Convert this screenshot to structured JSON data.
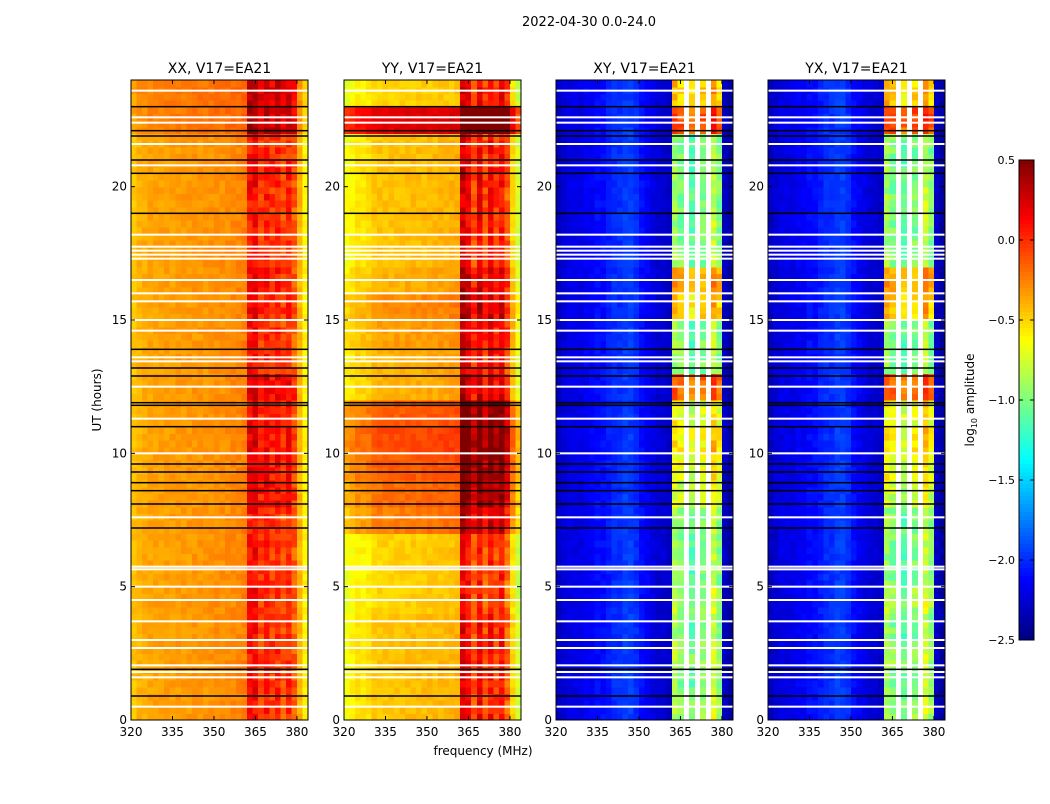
{
  "chart_data": {
    "type": "heatmap",
    "title": "2022-04-30 0.0-24.0",
    "xlabel": "frequency (MHz)",
    "ylabel": "UT (hours)",
    "xlim": [
      320,
      384
    ],
    "ylim": [
      0,
      24
    ],
    "xticks": [
      320,
      335,
      350,
      365,
      380
    ],
    "yticks": [
      0,
      5,
      10,
      15,
      20
    ],
    "channel_width_mhz": 2,
    "time_bin_hours": 0.25,
    "band_mhz": [
      362,
      380
    ],
    "colorbar": {
      "label": "log10 amplitude",
      "label_main": "log",
      "label_sub": "10",
      "label_rest": " amplitude",
      "colormap": "jet",
      "vmin": -2.5,
      "vmax": 0.5,
      "ticks": [
        0.5,
        0.0,
        -0.5,
        -1.0,
        -1.5,
        -2.0,
        -2.5
      ],
      "tick_labels": [
        "0.5",
        "0.0",
        "−0.5",
        "−1.0",
        "−1.5",
        "−2.0",
        "−2.5"
      ]
    },
    "flagged_rows_white_hours": [
      0.5,
      1.6,
      1.8,
      2.05,
      2.7,
      3.0,
      3.7,
      4.5,
      5.0,
      5.65,
      5.75,
      7.6,
      10.0,
      11.3,
      12.5,
      13.45,
      13.6,
      14.6,
      15.0,
      15.7,
      16.0,
      16.5,
      17.3,
      17.45,
      17.6,
      17.75,
      18.2,
      20.8,
      21.6,
      22.4,
      22.6,
      23.6
    ],
    "flagged_rows_black_hours": [
      0.9,
      1.9,
      7.2,
      8.1,
      8.6,
      8.9,
      9.3,
      9.6,
      11.0,
      11.8,
      11.9,
      12.9,
      13.2,
      13.9,
      19.0,
      20.5,
      21.0,
      21.9,
      22.1,
      23.0
    ],
    "panels": [
      {
        "title": "XX, V17=EA21",
        "spectrum": [
          -0.45,
          -0.4,
          -0.38,
          -0.36,
          -0.35,
          -0.35,
          -0.34,
          -0.34,
          -0.33,
          -0.33,
          -0.33,
          -0.32,
          -0.32,
          -0.32,
          -0.31,
          -0.3,
          -0.3,
          -0.29,
          -0.28,
          -0.27,
          -0.25,
          0.08,
          0.12,
          -0.05,
          0.05,
          -0.05,
          0.0,
          -0.1,
          0.0,
          -0.15,
          -0.4,
          -0.6
        ],
        "time_offset": [
          0,
          0,
          0,
          0,
          0,
          0,
          0,
          0,
          0,
          0,
          0,
          0,
          0,
          0,
          0,
          0,
          0,
          0,
          0,
          0,
          0,
          0,
          0.1,
          0.1
        ],
        "band_boost": [
          0,
          0,
          0,
          0,
          0,
          0,
          0,
          0,
          0.1,
          0.1,
          0.1,
          0.05,
          0.15,
          0,
          0,
          0.05,
          0.05,
          0,
          0,
          0,
          0.05,
          0,
          0.2,
          0.15
        ]
      },
      {
        "title": "YY, V17=EA21",
        "spectrum": [
          -0.6,
          -0.55,
          -0.5,
          -0.5,
          -0.48,
          -0.42,
          -0.4,
          -0.4,
          -0.4,
          -0.39,
          -0.39,
          -0.38,
          -0.38,
          -0.38,
          -0.38,
          -0.37,
          -0.37,
          -0.36,
          -0.36,
          -0.35,
          -0.33,
          0.28,
          0.18,
          -0.05,
          0.2,
          -0.05,
          0.15,
          0.0,
          0.15,
          -0.1,
          -0.45,
          -0.7
        ],
        "time_offset": [
          -0.05,
          -0.05,
          -0.05,
          -0.05,
          -0.1,
          -0.1,
          -0.1,
          0.15,
          0.2,
          0.25,
          0.3,
          0.25,
          0.0,
          0.0,
          0.05,
          0.1,
          0.0,
          -0.05,
          -0.05,
          -0.05,
          -0.05,
          -0.05,
          0.6,
          -0.1
        ],
        "band_boost": [
          0,
          0,
          0,
          0,
          0,
          0,
          0,
          0,
          0.1,
          0.1,
          0.1,
          0.1,
          0.1,
          0,
          0,
          0.05,
          0.1,
          0,
          0,
          0,
          0.05,
          0,
          0.3,
          0.1
        ]
      },
      {
        "title": "XY, V17=EA21",
        "spectrum": [
          -2.3,
          -2.25,
          -2.2,
          -2.2,
          -2.2,
          -2.15,
          -2.15,
          -2.1,
          -2.1,
          -2.05,
          -2.0,
          -2.0,
          -1.95,
          -1.95,
          -2.0,
          -2.1,
          -2.15,
          -2.2,
          -2.25,
          -2.25,
          -2.3,
          -0.9,
          -1.0,
          null,
          -1.1,
          null,
          -1.0,
          null,
          -0.8,
          -1.0,
          -2.3,
          -2.4
        ],
        "time_offset": [
          0,
          0,
          0,
          0,
          0,
          0,
          0,
          0,
          0,
          0,
          0,
          0,
          0,
          0,
          0,
          0,
          0,
          0,
          0,
          0,
          0,
          0,
          0,
          0
        ],
        "band_boost": [
          0.1,
          0,
          0.1,
          0,
          0.1,
          0,
          0,
          0,
          0.2,
          0.3,
          0.4,
          0.3,
          0.8,
          0,
          0,
          0.5,
          0.6,
          0,
          0,
          0,
          0,
          0,
          0.9,
          0.5
        ]
      },
      {
        "title": "YX, V17=EA21",
        "spectrum": [
          -2.3,
          -2.25,
          -2.2,
          -2.2,
          -2.2,
          -2.15,
          -2.15,
          -2.1,
          -2.1,
          -2.05,
          -2.0,
          -2.0,
          -1.95,
          -1.95,
          -2.0,
          -2.1,
          -2.15,
          -2.2,
          -2.25,
          -2.25,
          -2.3,
          -0.9,
          -1.0,
          null,
          -1.1,
          null,
          -1.0,
          null,
          -0.8,
          -1.0,
          -2.3,
          -2.4
        ],
        "time_offset": [
          0,
          0,
          0,
          0,
          0,
          0,
          0,
          0,
          0,
          0,
          0,
          0,
          0,
          0,
          0,
          0,
          0,
          0,
          0,
          0,
          0,
          0,
          0,
          0
        ],
        "band_boost": [
          0.1,
          0,
          0.1,
          0,
          0.1,
          0,
          0,
          0,
          0.2,
          0.3,
          0.4,
          0.3,
          0.8,
          0,
          0,
          0.5,
          0.6,
          0,
          0,
          0,
          0,
          0,
          0.9,
          0.5
        ]
      }
    ]
  }
}
